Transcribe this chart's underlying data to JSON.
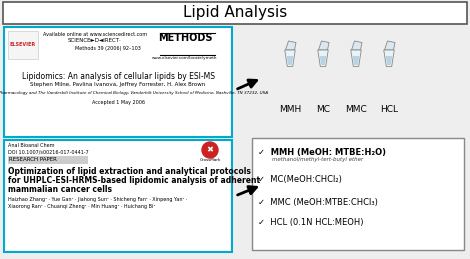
{
  "title": "Lipid Analysis",
  "title_fontsize": 11,
  "background_color": "#eeeeee",
  "paper1_border": "#00aacc",
  "paper2_border": "#00aacc",
  "tube_labels": [
    "MMH",
    "MC",
    "MMC",
    "HCL"
  ],
  "checklist_items": [
    {
      "text": "MMH (MeOH: MTBE:H₂O)",
      "sub": "methanol/methyl-tert-butyl ether",
      "bold": true
    },
    {
      "text": "MC(MeOH:CHCl₂)",
      "sub": "",
      "bold": false
    },
    {
      "text": "MMC (MeOH:MTBE:CHCl₃)",
      "sub": "",
      "bold": false
    },
    {
      "text": "HCL (0.1N HCL:MEOH)",
      "sub": "",
      "bold": false
    }
  ]
}
